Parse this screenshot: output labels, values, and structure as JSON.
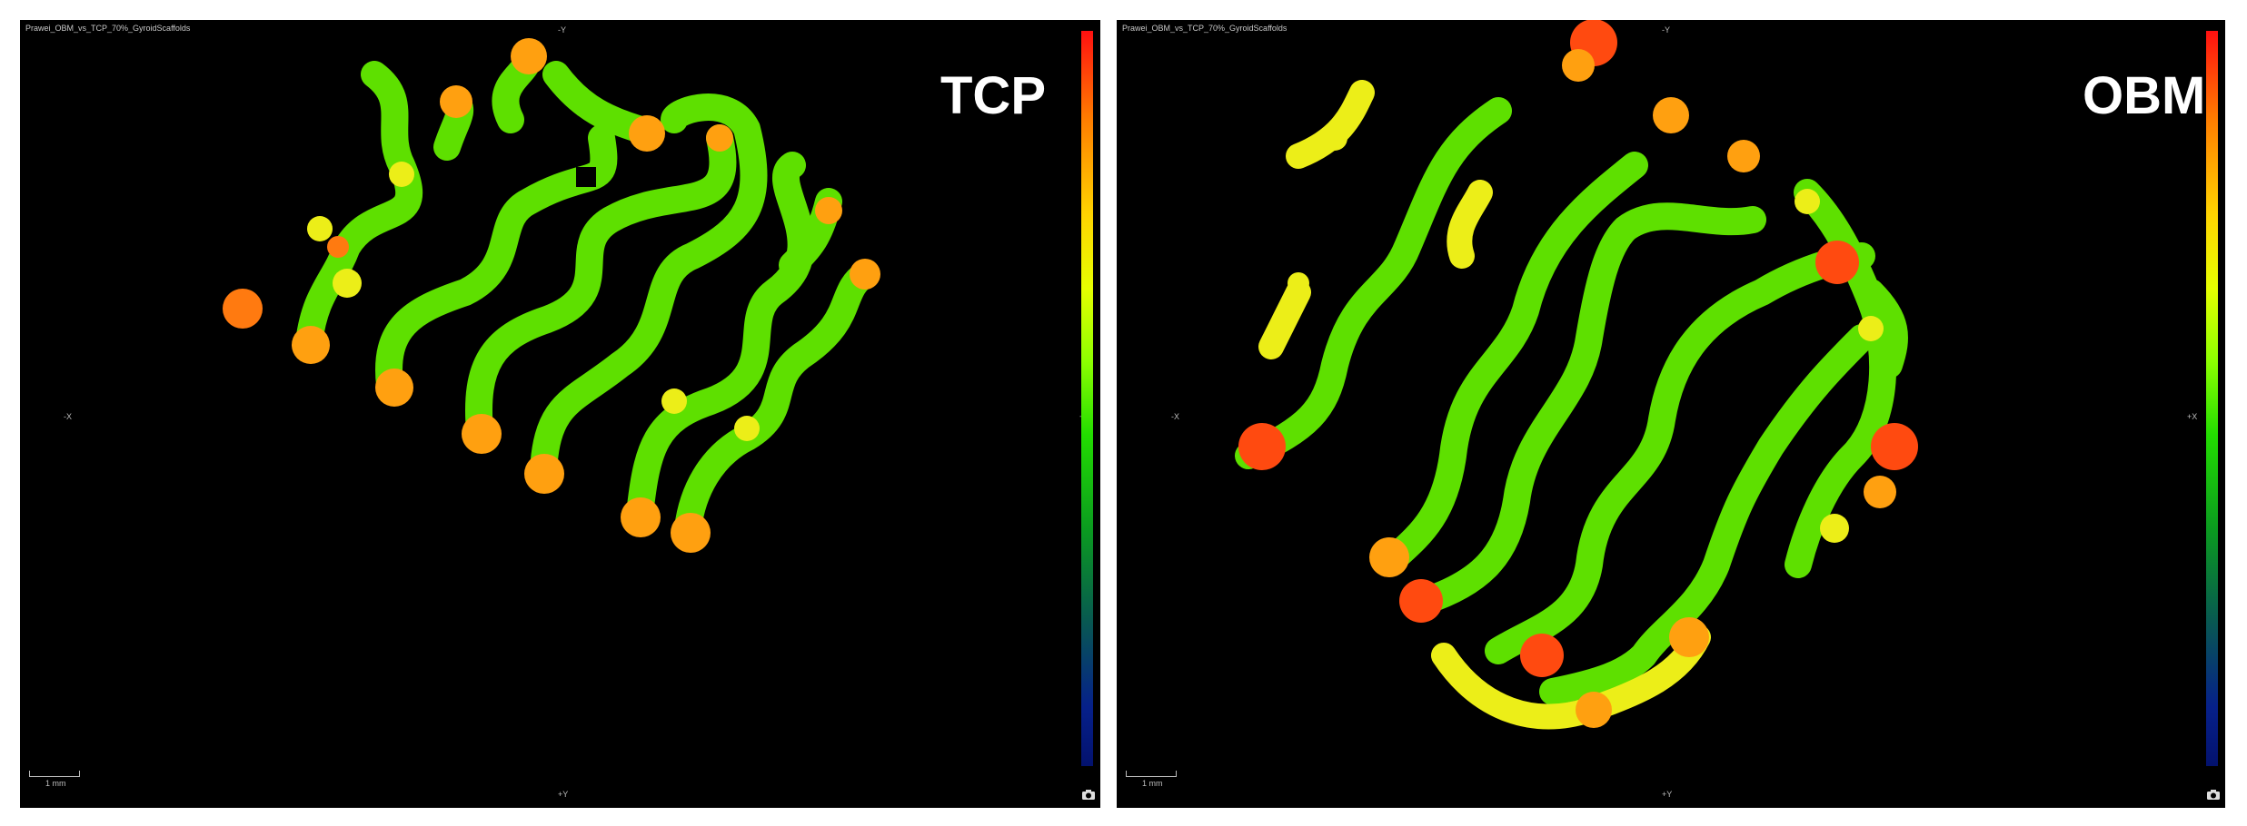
{
  "panels": [
    {
      "file_label": "Prawei_OBM_vs_TCP_70%_GyroidScaffolds",
      "title": "TCP",
      "axis_top": "-Y",
      "axis_bottom": "+Y",
      "axis_left": "-X",
      "axis_right": "+X",
      "scale_label": "1 mm",
      "icons": [
        "camera-icon"
      ]
    },
    {
      "file_label": "Prawei_OBM_vs_TCP_70%_GyroidScaffolds",
      "title": "OBM",
      "axis_top": "-Y",
      "axis_bottom": "+Y",
      "axis_left": "-X",
      "axis_right": "+X",
      "scale_label": "1 mm",
      "icons": [
        "camera-icon"
      ]
    }
  ],
  "colors": {
    "background": "#000000",
    "strut_base": "#5ee000",
    "hot": "#ff4a10",
    "warm": "#ffa010",
    "yellow": "#ecee18"
  }
}
